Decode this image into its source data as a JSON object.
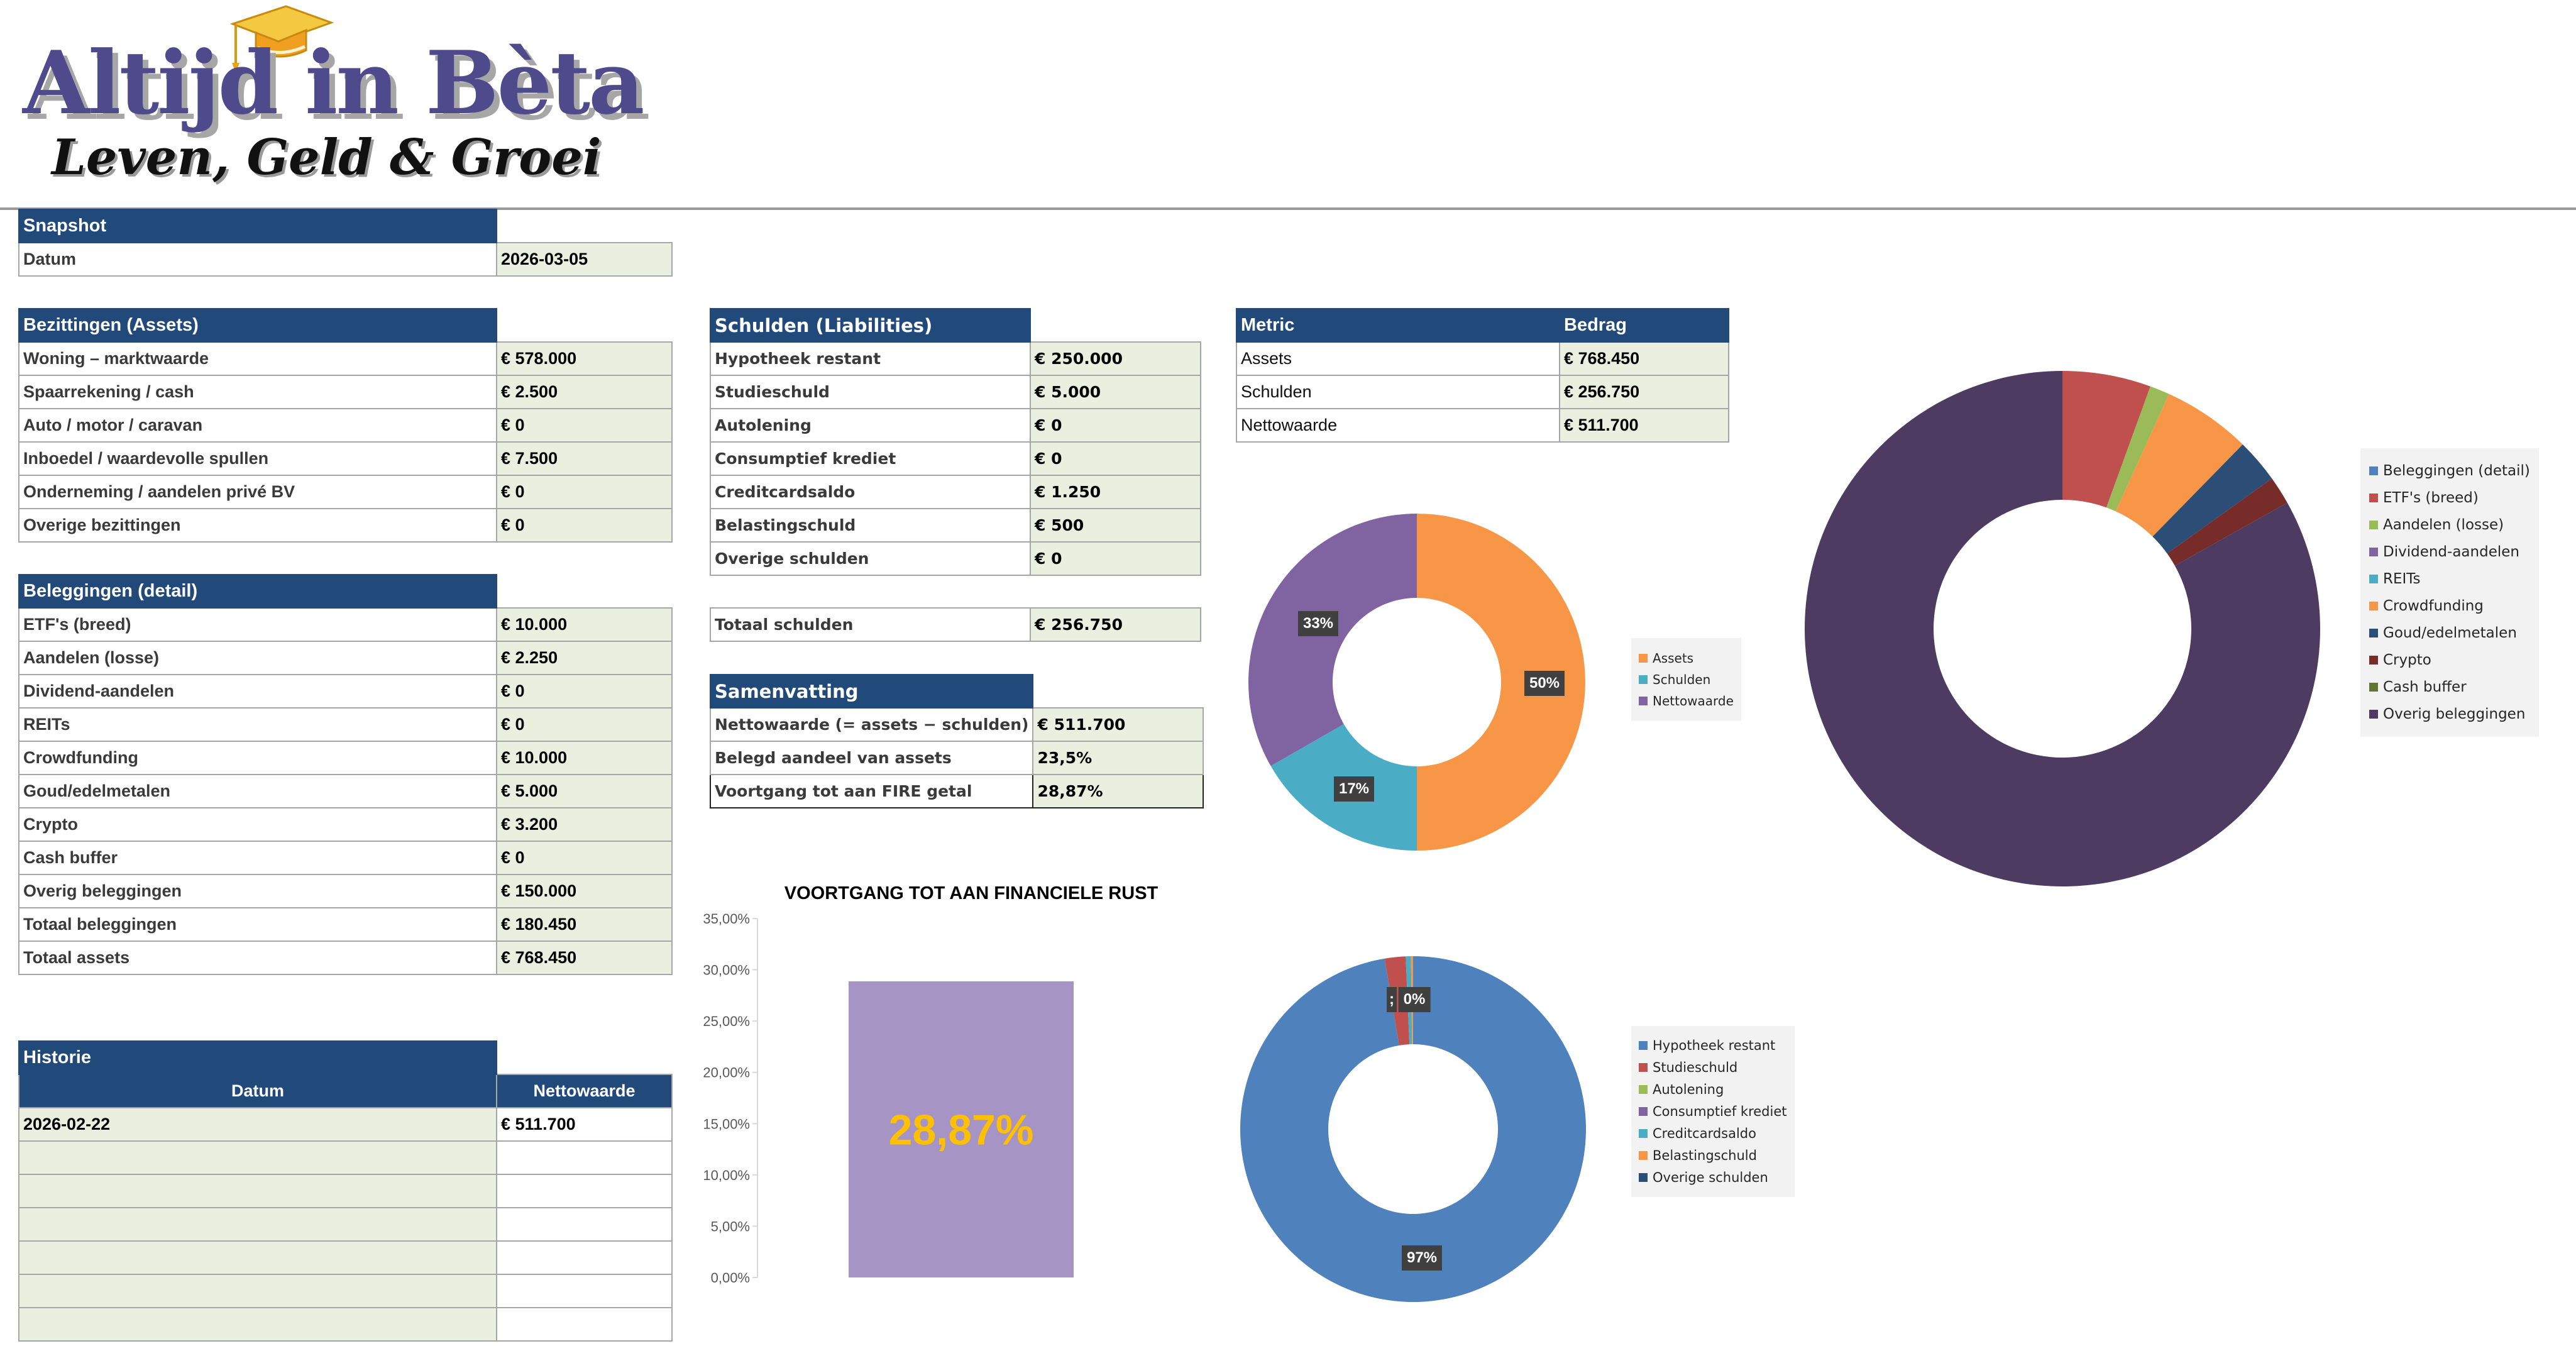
{
  "logo": {
    "title": "Altijd in Bèta",
    "subtitle": "Leven, Geld & Groei",
    "icon": "graduation-cap-icon"
  },
  "snapshot": {
    "header": "Snapshot",
    "rows": [
      {
        "label": "Datum",
        "value": "2026-03-05"
      }
    ]
  },
  "assets": {
    "header": "Bezittingen (Assets)",
    "rows": [
      {
        "label": "Woning – marktwaarde",
        "value": "€ 578.000"
      },
      {
        "label": "Spaarrekening / cash",
        "value": "€ 2.500"
      },
      {
        "label": "Auto / motor / caravan",
        "value": "€ 0"
      },
      {
        "label": "Inboedel / waardevolle spullen",
        "value": "€ 7.500"
      },
      {
        "label": "Onderneming / aandelen privé BV",
        "value": "€ 0"
      },
      {
        "label": "Overige bezittingen",
        "value": "€ 0"
      }
    ]
  },
  "investments": {
    "header": "Beleggingen (detail)",
    "rows": [
      {
        "label": "ETF's (breed)",
        "value": "€ 10.000"
      },
      {
        "label": "Aandelen (losse)",
        "value": "€ 2.250"
      },
      {
        "label": "Dividend-aandelen",
        "value": "€ 0"
      },
      {
        "label": "REITs",
        "value": "€ 0"
      },
      {
        "label": "Crowdfunding",
        "value": "€ 10.000"
      },
      {
        "label": "Goud/edelmetalen",
        "value": "€ 5.000"
      },
      {
        "label": "Crypto",
        "value": "€ 3.200"
      },
      {
        "label": "Cash buffer",
        "value": "€ 0"
      },
      {
        "label": "Overig beleggingen",
        "value": "€ 150.000"
      },
      {
        "label": "Totaal beleggingen",
        "value": "€ 180.450"
      },
      {
        "label": "Totaal assets",
        "value": "€ 768.450"
      }
    ]
  },
  "history": {
    "header": "Historie",
    "columns": [
      "Datum",
      "Nettowaarde"
    ],
    "rows": [
      {
        "date": "2026-02-22",
        "value": "€ 511.700"
      },
      {
        "date": "",
        "value": ""
      },
      {
        "date": "",
        "value": ""
      },
      {
        "date": "",
        "value": ""
      },
      {
        "date": "",
        "value": ""
      },
      {
        "date": "",
        "value": ""
      },
      {
        "date": "",
        "value": ""
      }
    ]
  },
  "liabilities": {
    "header": "Schulden (Liabilities)",
    "rows": [
      {
        "label": "Hypotheek restant",
        "value": "€ 250.000"
      },
      {
        "label": "Studieschuld",
        "value": "€ 5.000"
      },
      {
        "label": "Autolening",
        "value": "€ 0"
      },
      {
        "label": "Consumptief krediet",
        "value": "€ 0"
      },
      {
        "label": "Creditcardsaldo",
        "value": "€ 1.250"
      },
      {
        "label": "Belastingschuld",
        "value": "€ 500"
      },
      {
        "label": "Overige schulden",
        "value": "€ 0"
      }
    ],
    "total": {
      "label": "Totaal schulden",
      "value": "€ 256.750"
    }
  },
  "summary": {
    "header": "Samenvatting",
    "rows": [
      {
        "label": "Nettowaarde (= assets − schulden)",
        "value": "€ 511.700"
      },
      {
        "label": "Belegd aandeel van assets",
        "value": "23,5%"
      },
      {
        "label": "Voortgang tot aan FIRE getal",
        "value": "28,87%"
      }
    ]
  },
  "metrics": {
    "columns": [
      "Metric",
      "Bedrag"
    ],
    "rows": [
      {
        "label": "Assets",
        "value": "€ 768.450"
      },
      {
        "label": "Schulden",
        "value": "€ 256.750"
      },
      {
        "label": "Nettowaarde",
        "value": "€ 511.700"
      }
    ]
  },
  "colors": {
    "header_bg": "#214a7b",
    "value_bg": "#ebefdf",
    "border": "#a6a6a6"
  },
  "chart_data": [
    {
      "id": "overview",
      "type": "pie",
      "donut": true,
      "categories": [
        "Assets",
        "Schulden",
        "Nettowaarde"
      ],
      "values": [
        768450,
        256750,
        511700
      ],
      "labels": [
        "50%",
        "17%",
        "33%"
      ],
      "colors": [
        "#f79646",
        "#4bacc6",
        "#8064a2"
      ],
      "legend": "right"
    },
    {
      "id": "investments",
      "type": "pie",
      "donut": true,
      "categories": [
        "Beleggingen (detail)",
        "ETF's (breed)",
        "Aandelen (losse)",
        "Dividend-aandelen",
        "REITs",
        "Crowdfunding",
        "Goud/edelmetalen",
        "Crypto",
        "Cash buffer",
        "Overig beleggingen"
      ],
      "values": [
        0,
        10000,
        2250,
        0,
        0,
        10000,
        5000,
        3200,
        0,
        150000
      ],
      "colors": [
        "#4f81bd",
        "#c0504d",
        "#9bbb59",
        "#8064a2",
        "#4bacc6",
        "#f79646",
        "#2c4d75",
        "#772c2a",
        "#5f7530",
        "#4d3b62"
      ],
      "legend": "right"
    },
    {
      "id": "fire-progress",
      "type": "bar",
      "title": "VOORTGANG TOT AAN FINANCIELE RUST",
      "categories": [
        ""
      ],
      "values": [
        0.2887
      ],
      "data_label": "28,87%",
      "yticks": [
        "0,00%",
        "5,00%",
        "10,00%",
        "15,00%",
        "20,00%",
        "25,00%",
        "30,00%",
        "35,00%"
      ],
      "ylim": [
        0,
        0.35
      ],
      "bar_color": "#a695c4",
      "label_color": "#ffc000",
      "xlabel": "",
      "ylabel": "",
      "grid": false
    },
    {
      "id": "liabilities",
      "type": "pie",
      "donut": true,
      "categories": [
        "Hypotheek restant",
        "Studieschuld",
        "Autolening",
        "Consumptief krediet",
        "Creditcardsaldo",
        "Belastingschuld",
        "Overige schulden"
      ],
      "values": [
        250000,
        5000,
        0,
        0,
        1250,
        500,
        0
      ],
      "labels": [
        "97%",
        "2%",
        "0%"
      ],
      "colors": [
        "#4f81bd",
        "#c0504d",
        "#9bbb59",
        "#8064a2",
        "#4bacc6",
        "#f79646",
        "#2c4d75"
      ],
      "legend": "right"
    }
  ]
}
